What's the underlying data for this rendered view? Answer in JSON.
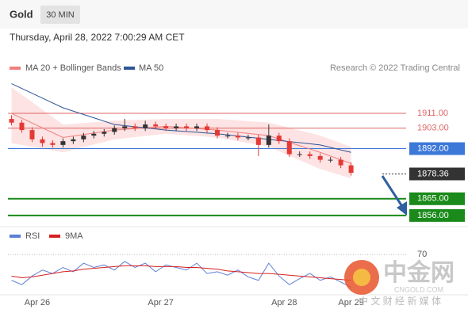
{
  "chart_data": {
    "type": "candlestick",
    "title": "Gold",
    "timeframe": "30 MIN",
    "subtitle": "Thursday, April 28, 2022 7:00:29 AM CET",
    "source": "Research © 2022 Trading Central",
    "up_color": "#333333",
    "down_color": "#e53935",
    "x": [
      -5,
      -3,
      -1,
      1,
      3,
      5,
      7,
      9,
      11,
      13,
      15,
      17,
      19,
      21,
      23,
      25,
      27,
      29,
      31,
      33,
      35,
      37,
      39,
      41,
      43,
      45,
      47,
      49,
      51,
      53,
      55,
      57,
      59,
      61
    ],
    "open": [
      1908,
      1906,
      1902,
      1897,
      1895,
      1894,
      1896,
      1897,
      1899,
      1900,
      1901,
      1903,
      1904,
      1903,
      1905,
      1904,
      1903,
      1904,
      1903,
      1904,
      1902,
      1899,
      1899,
      1898,
      1898,
      1894,
      1899,
      1896,
      1889,
      1889,
      1888,
      1886,
      1886,
      1883
    ],
    "high": [
      1910,
      1907.5,
      1903.5,
      1898.5,
      1896.5,
      1897.5,
      1898.5,
      1900.5,
      1901.5,
      1902.5,
      1904.5,
      1908,
      1905.5,
      1907,
      1906.5,
      1905.5,
      1905.5,
      1905.5,
      1905.5,
      1905.5,
      1903.5,
      1900.5,
      1900.5,
      1899.5,
      1899.5,
      1905,
      1900.5,
      1897.5,
      1890.5,
      1890.5,
      1889.5,
      1887.5,
      1887.5,
      1884.5
    ],
    "low": [
      1904.5,
      1900.5,
      1895.5,
      1893,
      1892.5,
      1892.5,
      1894.5,
      1895.5,
      1897.5,
      1898.5,
      1899.5,
      1901.5,
      1901.5,
      1901.5,
      1902.5,
      1901.5,
      1901.5,
      1901.5,
      1901.5,
      1900.5,
      1897.5,
      1897.5,
      1896.5,
      1896.5,
      1888,
      1892.5,
      1894.5,
      1887.5,
      1887.5,
      1886.5,
      1884.5,
      1884.5,
      1881.5,
      1877.5
    ],
    "close": [
      1906,
      1902,
      1897,
      1895,
      1894,
      1896,
      1897,
      1899,
      1900,
      1901,
      1903,
      1904,
      1903,
      1905,
      1904,
      1903,
      1904,
      1903,
      1904,
      1902,
      1899,
      1899,
      1898,
      1898,
      1894,
      1899,
      1896,
      1889,
      1889,
      1888,
      1886,
      1886,
      1883,
      1879
    ],
    "xlim": [
      -5.7,
      71.7
    ],
    "xticks": [
      {
        "value": 0,
        "label": "Apr 26"
      },
      {
        "value": 24,
        "label": "Apr 27"
      },
      {
        "value": 48,
        "label": "Apr 28"
      },
      {
        "value": 61,
        "label": "Apr 29"
      }
    ],
    "ylim": [
      1850.4,
      1931.5
    ],
    "overlays": {
      "x": [
        -5,
        5,
        15,
        25,
        35,
        45,
        55,
        61
      ],
      "ma20": {
        "name": "MA 20 + Bollinger Bands",
        "color": "#f08080",
        "values": [
          1911,
          1898,
          1902,
          1904,
          1902,
          1899,
          1890,
          1884
        ]
      },
      "bb_upper": [
        1925,
        1905,
        1907,
        1908,
        1908,
        1906,
        1899,
        1893
      ],
      "bb_lower": [
        1895,
        1890,
        1897,
        1900,
        1898,
        1893,
        1881,
        1876
      ],
      "band_color": "#fde3e3",
      "ma50": {
        "name": "MA 50",
        "color": "#2f5597",
        "values": [
          1927,
          1914,
          1905,
          1902,
          1900,
          1897,
          1894,
          1890
        ]
      }
    },
    "levels": [
      {
        "value": 1911,
        "label": "1911.00",
        "color": "#e06666",
        "style": "plain"
      },
      {
        "value": 1903,
        "label": "1903.00",
        "color": "#e06666",
        "style": "plain"
      },
      {
        "value": 1892,
        "label": "1892.00",
        "color": "#3c78d8",
        "style": "box"
      },
      {
        "value": 1878.36,
        "label": "1878.36",
        "color": "#333333",
        "style": "box-dotted"
      },
      {
        "value": 1865,
        "label": "1865.00",
        "color": "#1a8a1a",
        "style": "box-thick"
      },
      {
        "value": 1856,
        "label": "1856.00",
        "color": "#1a8a1a",
        "style": "box-thick"
      }
    ],
    "rsi": {
      "ylim": [
        25,
        85
      ],
      "yticks": [
        70
      ],
      "series": [
        {
          "name": "RSI",
          "color": "#5b7fd6",
          "values": [
            40,
            35,
            45,
            52,
            48,
            55,
            50,
            60,
            55,
            58,
            52,
            62,
            55,
            60,
            50,
            58,
            55,
            52,
            60,
            48,
            50,
            46,
            52,
            44,
            40,
            60,
            45,
            35,
            42,
            48,
            40,
            44,
            38,
            32
          ]
        },
        {
          "name": "9MA",
          "color": "#d62020",
          "values": [
            45,
            43,
            44,
            46,
            48,
            50,
            51,
            53,
            54,
            55,
            56,
            57,
            57,
            57,
            56,
            56,
            56,
            55,
            55,
            54,
            53,
            51,
            50,
            49,
            48,
            48,
            47,
            46,
            45,
            44,
            43,
            42,
            41,
            40
          ]
        }
      ]
    }
  },
  "watermark": {
    "brand": "中金网",
    "site": "CNGOLD.COM",
    "slogan": "中 文 财 经 新 媒 体"
  }
}
